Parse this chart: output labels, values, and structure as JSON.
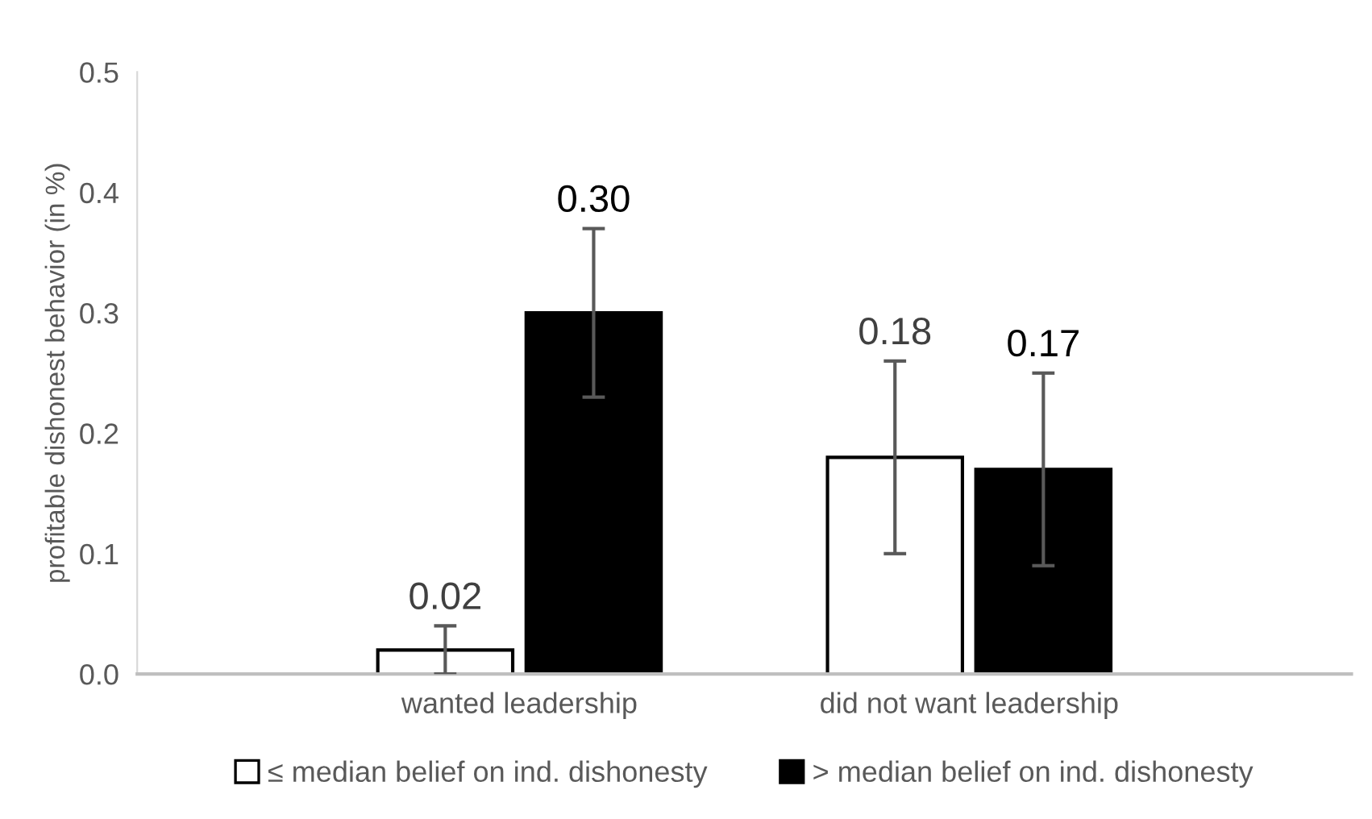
{
  "chart_data": {
    "type": "bar",
    "ylabel": "profitable dishonest behavior (in %)",
    "categories": [
      "wanted leadership",
      "did not want leadership"
    ],
    "series": [
      {
        "name": "≤ median belief on ind. dishonesty",
        "color": "#ffffff",
        "values": [
          0.02,
          0.18
        ],
        "errors": [
          [
            0.0,
            0.04
          ],
          [
            0.1,
            0.26
          ]
        ],
        "value_labels": [
          "0.02",
          "0.18"
        ]
      },
      {
        "name": "> median belief on ind. dishonesty",
        "color": "#000000",
        "values": [
          0.3,
          0.17
        ],
        "errors": [
          [
            0.23,
            0.37
          ],
          [
            0.09,
            0.25
          ]
        ],
        "value_labels": [
          "0.30",
          "0.17"
        ]
      }
    ],
    "ylim": [
      0,
      0.5
    ],
    "yticks": [
      {
        "value": 0,
        "label": "0.0"
      },
      0.1,
      0.2,
      0.3,
      0.4,
      0.5
    ],
    "legend": "bottom",
    "grid": false
  }
}
